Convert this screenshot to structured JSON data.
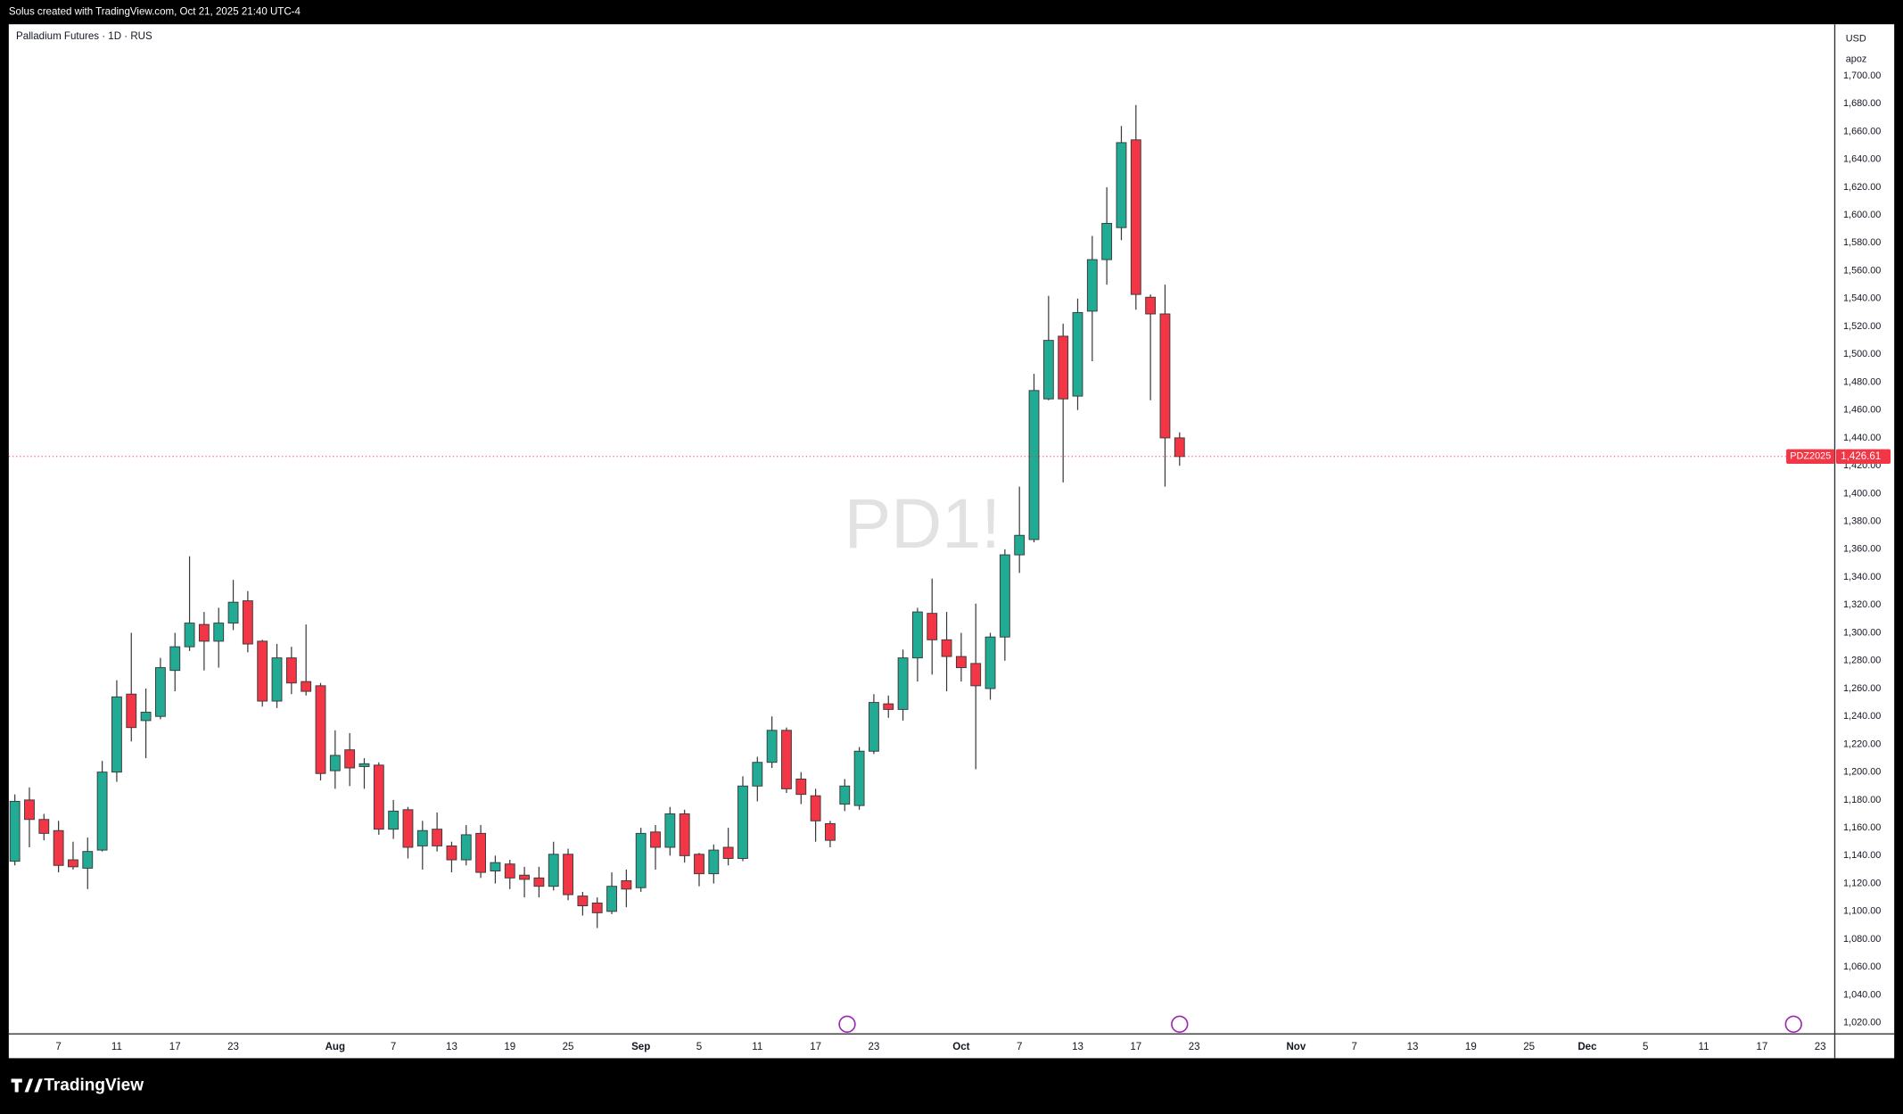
{
  "header": {
    "text": "Solus created with TradingView.com, Oct 21, 2025 21:40 UTC-4"
  },
  "footer": {
    "brand": "TradingView"
  },
  "chart_data": {
    "type": "candlestick",
    "title": "Palladium Futures · 1D · RUS",
    "watermark": "PD1!",
    "currency": "USD",
    "unit_label": "apoz",
    "symbol_label": "PDZ2025",
    "last_price": {
      "value": 1426.61,
      "label": "1,426.61"
    },
    "up_color": "#22ab94",
    "down_color": "#f23645",
    "wick_color": "#3a3a3a",
    "grid": false,
    "categories": [
      null,
      null,
      null,
      "7",
      null,
      null,
      null,
      "11",
      null,
      null,
      null,
      "17",
      null,
      null,
      null,
      "23",
      null,
      null,
      null,
      null,
      null,
      null,
      "Aug",
      null,
      null,
      null,
      "7",
      null,
      null,
      null,
      "13",
      null,
      null,
      null,
      "19",
      null,
      null,
      null,
      "25",
      null,
      null,
      null,
      null,
      "Sep",
      null,
      null,
      null,
      "5",
      null,
      null,
      null,
      "11",
      null,
      null,
      null,
      "17",
      null,
      null,
      null,
      "23",
      null,
      null,
      null,
      null,
      null,
      "Oct",
      null,
      null,
      null,
      "7",
      null,
      null,
      null,
      "13",
      null,
      null,
      null,
      "17",
      null,
      null,
      null,
      "23",
      null,
      null,
      null,
      null,
      null,
      null,
      "Nov",
      null,
      null,
      null,
      "7",
      null,
      null,
      null,
      "13",
      null,
      null,
      null,
      "19",
      null,
      null,
      null,
      "25",
      null,
      null,
      null,
      "Dec",
      null,
      null,
      null,
      "5",
      null,
      null,
      null,
      "11",
      null,
      null,
      null,
      "17",
      null,
      null,
      null,
      "23"
    ],
    "open": [
      1136,
      1180,
      1166,
      1158,
      1137,
      1131,
      1144,
      1200,
      1256,
      1237,
      1240,
      1273,
      1290,
      1306,
      1294,
      1307,
      1323,
      1294,
      1251,
      1282,
      1265,
      1262,
      1201,
      1216,
      1204,
      1205,
      1159,
      1173,
      1147,
      1159,
      1147,
      1137,
      1156,
      1129,
      1134,
      1126,
      1124,
      1118,
      1141,
      1111,
      1106,
      1100,
      1122,
      1117,
      1157,
      1146,
      1170,
      1141,
      1127,
      1146,
      1138,
      1190,
      1207,
      1230,
      1195,
      1183,
      1163,
      1177,
      1176,
      1215,
      1249,
      1245,
      1282,
      1314,
      1295,
      1283,
      1278,
      1260,
      1297,
      1356,
      1367,
      1468,
      1513,
      1470,
      1531,
      1568,
      1591,
      1654,
      1541,
      1529,
      1440,
      null,
      null,
      null,
      null,
      null,
      null,
      null,
      null,
      null,
      null,
      null,
      null,
      null,
      null,
      null,
      null,
      null,
      null,
      null,
      null,
      null,
      null,
      null,
      null,
      null,
      null,
      null,
      null,
      null,
      null,
      null,
      null,
      null,
      null,
      null,
      null,
      null,
      null,
      null,
      null,
      null,
      null,
      null,
      null
    ],
    "high": [
      1184,
      1189,
      1170,
      1165,
      1150,
      1153,
      1208,
      1266,
      1300,
      1260,
      1282,
      1300,
      1355,
      1315,
      1318,
      1338,
      1330,
      1295,
      1292,
      1290,
      1306,
      1264,
      1230,
      1228,
      1210,
      1207,
      1180,
      1175,
      1165,
      1171,
      1150,
      1162,
      1162,
      1140,
      1137,
      1132,
      1132,
      1150,
      1145,
      1114,
      1110,
      1128,
      1130,
      1160,
      1162,
      1175,
      1173,
      1142,
      1148,
      1160,
      1197,
      1211,
      1240,
      1232,
      1200,
      1188,
      1165,
      1195,
      1218,
      1256,
      1255,
      1288,
      1318,
      1339,
      1315,
      1300,
      1321,
      1300,
      1360,
      1405,
      1486,
      1542,
      1522,
      1540,
      1585,
      1620,
      1664,
      1679,
      1543,
      1550,
      1444,
      null,
      null,
      null,
      null,
      null,
      null,
      null,
      null,
      null,
      null,
      null,
      null,
      null,
      null,
      null,
      null,
      null,
      null,
      null,
      null,
      null,
      null,
      null,
      null,
      null,
      null,
      null,
      null,
      null,
      null,
      null,
      null,
      null,
      null,
      null,
      null,
      null,
      null,
      null,
      null,
      null,
      null,
      null,
      null
    ],
    "low": [
      1133,
      1146,
      1151,
      1128,
      1130,
      1116,
      1143,
      1193,
      1222,
      1210,
      1238,
      1258,
      1287,
      1273,
      1275,
      1302,
      1286,
      1247,
      1246,
      1256,
      1255,
      1194,
      1188,
      1190,
      1188,
      1155,
      1152,
      1138,
      1130,
      1143,
      1128,
      1133,
      1124,
      1120,
      1116,
      1110,
      1110,
      1115,
      1108,
      1097,
      1088,
      1098,
      1103,
      1114,
      1130,
      1140,
      1135,
      1118,
      1120,
      1133,
      1136,
      1179,
      1203,
      1185,
      1177,
      1150,
      1146,
      1172,
      1173,
      1213,
      1239,
      1237,
      1265,
      1270,
      1258,
      1265,
      1202,
      1252,
      1280,
      1343,
      1365,
      1467,
      1408,
      1460,
      1495,
      1550,
      1582,
      1532,
      1467,
      1405,
      1420,
      null,
      null,
      null,
      null,
      null,
      null,
      null,
      null,
      null,
      null,
      null,
      null,
      null,
      null,
      null,
      null,
      null,
      null,
      null,
      null,
      null,
      null,
      null,
      null,
      null,
      null,
      null,
      null,
      null,
      null,
      null,
      null,
      null,
      null,
      null,
      null,
      null,
      null,
      null,
      null,
      null,
      null,
      null,
      null
    ],
    "close": [
      1179,
      1166,
      1156,
      1133,
      1132,
      1143,
      1200,
      1254,
      1232,
      1243,
      1275,
      1290,
      1307,
      1294,
      1307,
      1322,
      1292,
      1251,
      1282,
      1264,
      1258,
      1199,
      1212,
      1203,
      1206,
      1159,
      1172,
      1146,
      1158,
      1147,
      1137,
      1155,
      1128,
      1135,
      1124,
      1123,
      1118,
      1141,
      1112,
      1104,
      1099,
      1118,
      1116,
      1156,
      1146,
      1170,
      1140,
      1127,
      1144,
      1138,
      1190,
      1207,
      1230,
      1188,
      1184,
      1165,
      1151,
      1190,
      1215,
      1250,
      1245,
      1282,
      1315,
      1295,
      1283,
      1275,
      1262,
      1297,
      1356,
      1370,
      1474,
      1510,
      1468,
      1530,
      1568,
      1594,
      1652,
      1543,
      1529,
      1440,
      1426.61,
      null,
      null,
      null,
      null,
      null,
      null,
      null,
      null,
      null,
      null,
      null,
      null,
      null,
      null,
      null,
      null,
      null,
      null,
      null,
      null,
      null,
      null,
      null,
      null,
      null,
      null,
      null,
      null,
      null,
      null,
      null,
      null,
      null,
      null,
      null,
      null,
      null,
      null,
      null,
      null,
      null,
      null,
      null,
      null
    ],
    "ylim": [
      1012,
      1737
    ],
    "yticks": [
      {
        "value": 1020,
        "label": "1,020.00"
      },
      {
        "value": 1040,
        "label": "1,040.00"
      },
      {
        "value": 1060,
        "label": "1,060.00"
      },
      {
        "value": 1080,
        "label": "1,080.00"
      },
      {
        "value": 1100,
        "label": "1,100.00"
      },
      {
        "value": 1120,
        "label": "1,120.00"
      },
      {
        "value": 1140,
        "label": "1,140.00"
      },
      {
        "value": 1160,
        "label": "1,160.00"
      },
      {
        "value": 1180,
        "label": "1,180.00"
      },
      {
        "value": 1200,
        "label": "1,200.00"
      },
      {
        "value": 1220,
        "label": "1,220.00"
      },
      {
        "value": 1240,
        "label": "1,240.00"
      },
      {
        "value": 1260,
        "label": "1,260.00"
      },
      {
        "value": 1280,
        "label": "1,280.00"
      },
      {
        "value": 1300,
        "label": "1,300.00"
      },
      {
        "value": 1320,
        "label": "1,320.00"
      },
      {
        "value": 1340,
        "label": "1,340.00"
      },
      {
        "value": 1360,
        "label": "1,360.00"
      },
      {
        "value": 1380,
        "label": "1,380.00"
      },
      {
        "value": 1400,
        "label": "1,400.00"
      },
      {
        "value": 1420,
        "label": "1,420.00"
      },
      {
        "value": 1440,
        "label": "1,440.00"
      },
      {
        "value": 1460,
        "label": "1,460.00"
      },
      {
        "value": 1480,
        "label": "1,480.00"
      },
      {
        "value": 1500,
        "label": "1,500.00"
      },
      {
        "value": 1520,
        "label": "1,520.00"
      },
      {
        "value": 1540,
        "label": "1,540.00"
      },
      {
        "value": 1560,
        "label": "1,560.00"
      },
      {
        "value": 1580,
        "label": "1,580.00"
      },
      {
        "value": 1600,
        "label": "1,600.00"
      },
      {
        "value": 1620,
        "label": "1,620.00"
      },
      {
        "value": 1640,
        "label": "1,640.00"
      },
      {
        "value": 1660,
        "label": "1,660.00"
      },
      {
        "value": 1680,
        "label": "1,680.00"
      },
      {
        "value": 1700,
        "label": "1,700.00"
      }
    ]
  }
}
